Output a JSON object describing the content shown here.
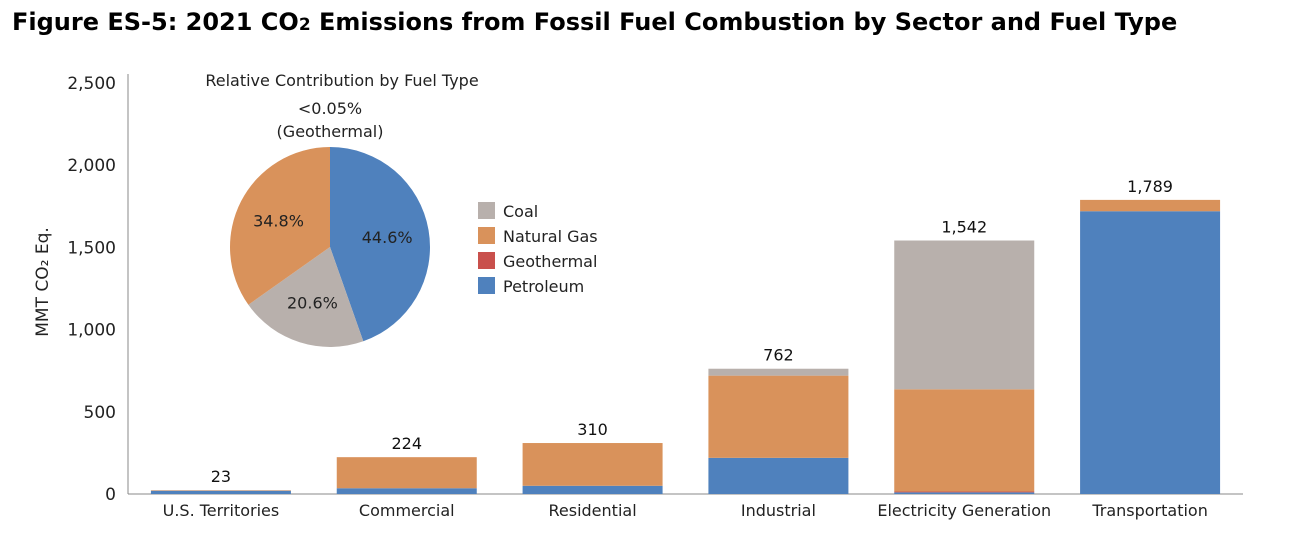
{
  "title_parts": {
    "before": "Figure ES-5:  2021 CO",
    "sub": "2",
    "after": " Emissions from Fossil Fuel Combustion by Sector and Fuel Type"
  },
  "colors": {
    "Coal": "#b8b0ac",
    "Natural Gas": "#d9925b",
    "Geothermal": "#c9504c",
    "Petroleum": "#4f81bd"
  },
  "chart_data": [
    {
      "type": "bar",
      "stacked": true,
      "categories": [
        "U.S. Territories",
        "Commercial",
        "Residential",
        "Industrial",
        "Electricity Generation",
        "Transportation"
      ],
      "ylabel": "MMT CO₂ Eq.",
      "ylim": [
        0,
        2500
      ],
      "yticks": [
        "0",
        "500",
        "1,000",
        "1,500",
        "2,000",
        "2,500"
      ],
      "ytick_values": [
        0,
        500,
        1000,
        1500,
        2000,
        2500
      ],
      "totals": [
        23,
        224,
        310,
        762,
        1542,
        1789
      ],
      "total_labels": [
        "23",
        "224",
        "310",
        "762",
        "1,542",
        "1,789"
      ],
      "series": [
        {
          "name": "Petroleum",
          "values": [
            20,
            35,
            50,
            220,
            10,
            1720
          ]
        },
        {
          "name": "Geothermal",
          "values": [
            0,
            0,
            0,
            0,
            5,
            0
          ]
        },
        {
          "name": "Natural Gas",
          "values": [
            3,
            189,
            260,
            500,
            622,
            69
          ]
        },
        {
          "name": "Coal",
          "values": [
            0,
            0,
            0,
            42,
            905,
            0
          ]
        }
      ],
      "legend": {
        "placement": "top-center",
        "items": [
          "Coal",
          "Natural Gas",
          "Geothermal",
          "Petroleum"
        ]
      },
      "grid": false
    },
    {
      "type": "pie",
      "title": "Relative Contribution by Fuel Type",
      "slices": [
        {
          "name": "Petroleum",
          "value": 44.6,
          "label": "44.6%"
        },
        {
          "name": "Coal",
          "value": 20.6,
          "label": "20.6%"
        },
        {
          "name": "Natural Gas",
          "value": 34.8,
          "label": "34.8%"
        },
        {
          "name": "Geothermal",
          "value": 0.0,
          "label": ""
        }
      ],
      "annotation": [
        "<0.05%",
        "(Geothermal)"
      ]
    }
  ]
}
